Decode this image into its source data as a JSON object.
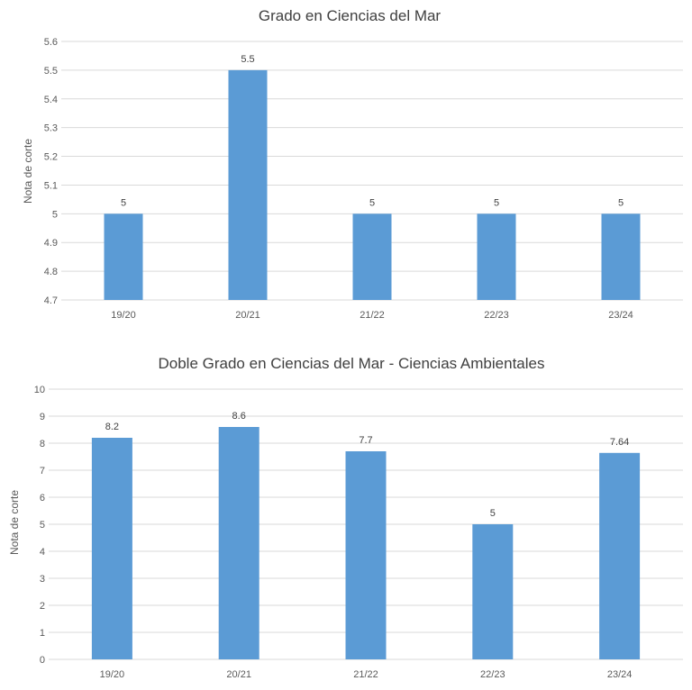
{
  "chart_data": [
    {
      "type": "bar",
      "title": "Grado en Ciencias del Mar",
      "xlabel": "",
      "ylabel": "Nota de corte",
      "categories": [
        "19/20",
        "20/21",
        "21/22",
        "22/23",
        "23/24"
      ],
      "values": [
        5,
        5.5,
        5,
        5,
        5
      ],
      "value_labels": [
        "5",
        "5.5",
        "5",
        "5",
        "5"
      ],
      "ylim": [
        4.7,
        5.6
      ],
      "yticks": [
        "4.7",
        "4.8",
        "4.9",
        "5",
        "5.1",
        "5.2",
        "5.3",
        "5.4",
        "5.5",
        "5.6"
      ],
      "grid": true,
      "bar_color": "#5b9bd5"
    },
    {
      "type": "bar",
      "title": "Doble Grado en Ciencias del Mar - Ciencias Ambientales",
      "xlabel": "",
      "ylabel": "Nota de corte",
      "categories": [
        "19/20",
        "20/21",
        "21/22",
        "22/23",
        "23/24"
      ],
      "values": [
        8.2,
        8.6,
        7.7,
        5,
        7.64
      ],
      "value_labels": [
        "8.2",
        "8.6",
        "7.7",
        "5",
        "7.64"
      ],
      "ylim": [
        0,
        10
      ],
      "yticks": [
        "0",
        "1",
        "2",
        "3",
        "4",
        "5",
        "6",
        "7",
        "8",
        "9",
        "10"
      ],
      "grid": true,
      "bar_color": "#5b9bd5"
    }
  ]
}
